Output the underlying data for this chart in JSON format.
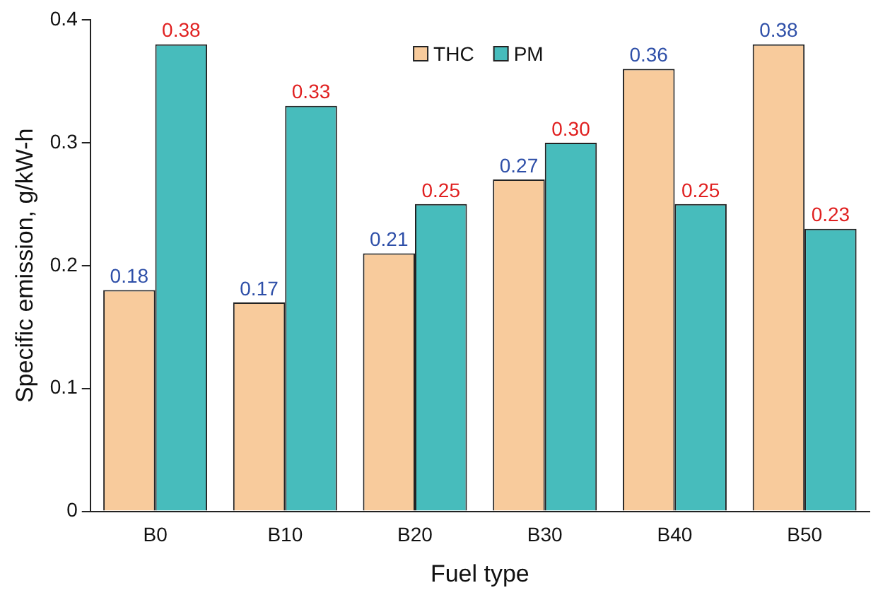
{
  "chart_data": {
    "type": "bar",
    "xlabel": "Fuel type",
    "ylabel": "Specific emission, g/kW-h",
    "categories": [
      "B0",
      "B10",
      "B20",
      "B30",
      "B40",
      "B50"
    ],
    "series": [
      {
        "name": "THC",
        "color": "#f8cb9c",
        "values": [
          0.18,
          0.17,
          0.21,
          0.27,
          0.36,
          0.38
        ],
        "value_labels": [
          "0.18",
          "0.17",
          "0.21",
          "0.27",
          "0.36",
          "0.38"
        ]
      },
      {
        "name": "PM",
        "color": "#47bcbc",
        "values": [
          0.38,
          0.33,
          0.25,
          0.3,
          0.25,
          0.23
        ],
        "value_labels": [
          "0.38",
          "0.33",
          "0.25",
          "0.30",
          "0.25",
          "0.23"
        ]
      }
    ],
    "ylim": [
      0,
      0.4
    ],
    "yticks": [
      0,
      0.1,
      0.2,
      0.3,
      0.4
    ],
    "grid": false,
    "legend": "top"
  }
}
